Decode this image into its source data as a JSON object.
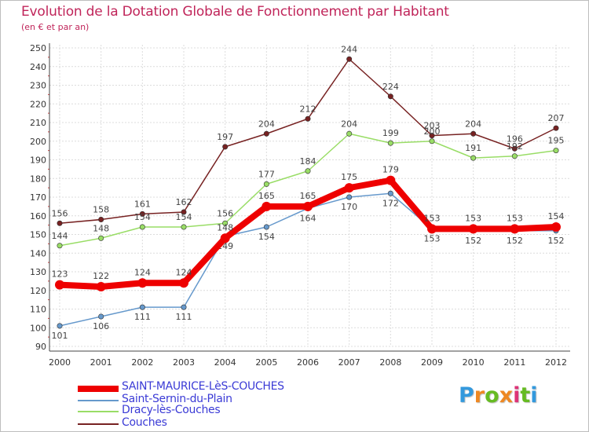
{
  "chart_data": {
    "type": "line",
    "title": "Evolution de la Dotation Globale de Fonctionnement par Habitant",
    "subtitle": "(en € et par an)",
    "xlabel": "",
    "ylabel": "",
    "categories": [
      "2000",
      "2001",
      "2002",
      "2003",
      "2004",
      "2005",
      "2006",
      "2007",
      "2008",
      "2009",
      "2010",
      "2011",
      "2012"
    ],
    "yticks": [
      90,
      100,
      110,
      120,
      130,
      140,
      150,
      160,
      170,
      180,
      190,
      200,
      210,
      220,
      230,
      240,
      250
    ],
    "ylim": [
      90,
      250
    ],
    "grid": true,
    "series": [
      {
        "name": "SAINT-MAURICE-LèS-COUCHES",
        "color": "#ee0000",
        "values": [
          123,
          122,
          124,
          124,
          148,
          165,
          165,
          175,
          179,
          153,
          153,
          153,
          154
        ]
      },
      {
        "name": "Saint-Sernin-du-Plain",
        "color": "#6699cc",
        "values": [
          101,
          106,
          111,
          111,
          149,
          154,
          164,
          170,
          172,
          153,
          152,
          152,
          152
        ]
      },
      {
        "name": "Dracy-lès-Couches",
        "color": "#99dd66",
        "values": [
          144,
          148,
          154,
          154,
          156,
          177,
          184,
          204,
          199,
          200,
          191,
          192,
          195
        ]
      },
      {
        "name": "Couches",
        "color": "#772222",
        "values": [
          156,
          158,
          161,
          162,
          197,
          204,
          212,
          244,
          224,
          203,
          204,
          196,
          207
        ]
      }
    ]
  },
  "brand": {
    "letters": [
      "P",
      "r",
      "o",
      "x",
      "i",
      "t",
      "i"
    ],
    "colors": [
      "#3399dd",
      "#ee8822",
      "#66bb22",
      "#ee8822",
      "#dd3377",
      "#66bb22",
      "#3399dd"
    ]
  }
}
